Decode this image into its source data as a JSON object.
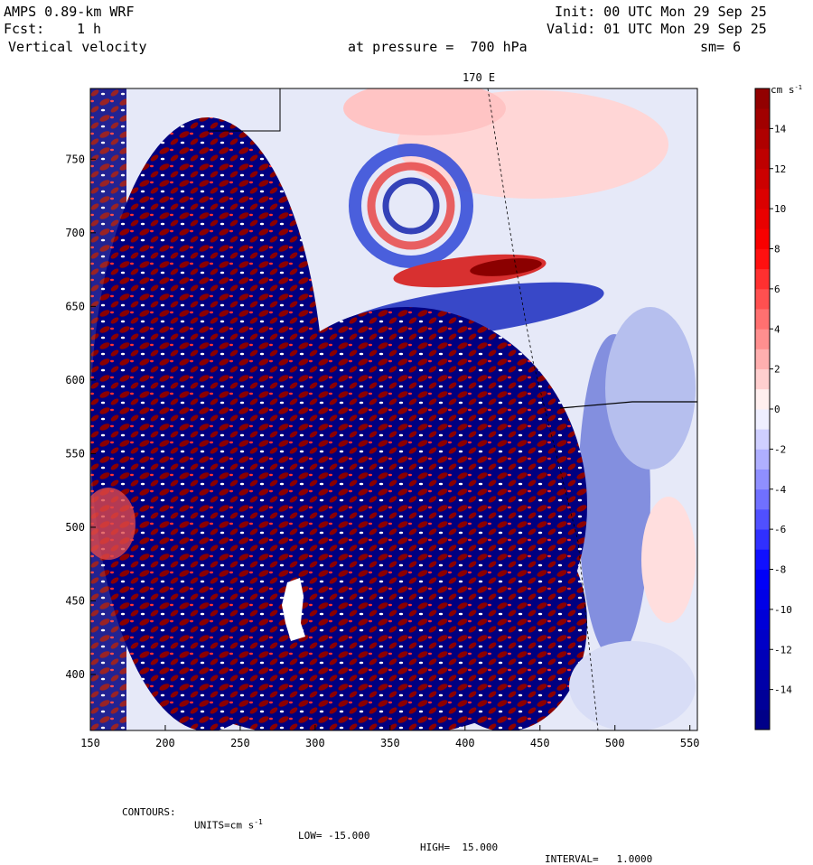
{
  "header": {
    "model": "AMPS 0.89-km WRF",
    "forecast_label": "Fcst:",
    "forecast_value": "1 h",
    "variable": "Vertical velocity",
    "pressure_text": "at pressure =  700 hPa",
    "init": "Init: 00 UTC Mon 29 Sep 25",
    "valid": "Valid: 01 UTC Mon 29 Sep 25",
    "smoothing": "sm= 6"
  },
  "map": {
    "meridian_label": "170 E",
    "x_ticks": [
      "150",
      "200",
      "250",
      "300",
      "350",
      "400",
      "450",
      "500",
      "550"
    ],
    "y_ticks": [
      "750",
      "700",
      "650",
      "600",
      "550",
      "500",
      "450",
      "400"
    ],
    "x_range": [
      150,
      555
    ],
    "y_range": [
      362,
      798
    ]
  },
  "colorbar": {
    "units": "cm s",
    "units_exp": "-1",
    "labels": [
      "14",
      "12",
      "10",
      "8",
      "6",
      "4",
      "2",
      "0",
      "-2",
      "-4",
      "-6",
      "-8",
      "-10",
      "-12",
      "-14"
    ],
    "range": [
      -16,
      16
    ],
    "colors": {
      "strong_pos": "#8b0000",
      "pos": "#ff0000",
      "weak_pos": "#ffd0d0",
      "zero": "#ffffff",
      "weak_neg": "#d6dcf5",
      "neg": "#0000ff",
      "strong_neg": "#000080"
    }
  },
  "footer": {
    "contours": "CONTOURS:",
    "units": "UNITS=cm s",
    "units_exp": "-1",
    "low": "LOW= -15.000",
    "high": "HIGH=  15.000",
    "interval": "INTERVAL=   1.0000"
  }
}
